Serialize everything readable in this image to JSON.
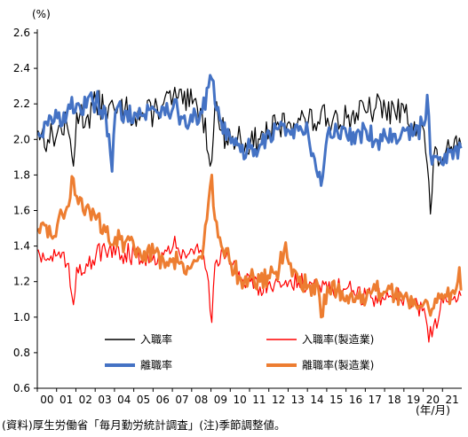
{
  "chart_data": {
    "type": "line",
    "y_unit_label": "(%)",
    "x_unit_label": "(年/月)",
    "note": "(資料)厚生労働省「毎月勤労統計調査」(注)季節調整値。",
    "ylim": [
      0.6,
      2.6
    ],
    "y_ticks": [
      "0.6",
      "0.8",
      "1.0",
      "1.2",
      "1.4",
      "1.6",
      "1.8",
      "2.0",
      "2.2",
      "2.4",
      "2.6"
    ],
    "x_range": [
      "2000-01",
      "2021-12"
    ],
    "x_ticks": [
      "00",
      "01",
      "02",
      "03",
      "04",
      "05",
      "06",
      "07",
      "08",
      "09",
      "10",
      "11",
      "12",
      "13",
      "14",
      "15",
      "16",
      "17",
      "18",
      "19",
      "20",
      "21"
    ],
    "grid": false,
    "legend_position": "bottom, inside plot, 2 columns",
    "series": [
      {
        "name": "入職率",
        "color": "#000000",
        "style": "thin",
        "anchors": [
          [
            0,
            2.05
          ],
          [
            6,
            2.0
          ],
          [
            12,
            2.04
          ],
          [
            18,
            2.08
          ],
          [
            22,
            1.85
          ],
          [
            24,
            2.15
          ],
          [
            30,
            2.12
          ],
          [
            36,
            2.2
          ],
          [
            42,
            2.18
          ],
          [
            48,
            2.15
          ],
          [
            54,
            2.17
          ],
          [
            60,
            2.14
          ],
          [
            66,
            2.13
          ],
          [
            72,
            2.16
          ],
          [
            78,
            2.2
          ],
          [
            84,
            2.24
          ],
          [
            90,
            2.2
          ],
          [
            96,
            2.2
          ],
          [
            102,
            2.15
          ],
          [
            108,
            1.88
          ],
          [
            110,
            2.2
          ],
          [
            114,
            2.05
          ],
          [
            120,
            2.0
          ],
          [
            126,
            2.0
          ],
          [
            132,
            1.97
          ],
          [
            138,
            2.0
          ],
          [
            144,
            2.05
          ],
          [
            150,
            2.07
          ],
          [
            156,
            2.1
          ],
          [
            162,
            2.12
          ],
          [
            168,
            2.1
          ],
          [
            174,
            2.1
          ],
          [
            180,
            2.12
          ],
          [
            186,
            2.14
          ],
          [
            192,
            2.12
          ],
          [
            198,
            2.15
          ],
          [
            204,
            2.15
          ],
          [
            210,
            2.18
          ],
          [
            216,
            2.17
          ],
          [
            222,
            2.15
          ],
          [
            228,
            2.15
          ],
          [
            234,
            2.1
          ],
          [
            240,
            2.05
          ],
          [
            244,
            1.58
          ],
          [
            246,
            1.9
          ],
          [
            252,
            1.9
          ],
          [
            258,
            1.93
          ],
          [
            263,
            1.97
          ]
        ]
      },
      {
        "name": "離職率",
        "color": "#4472C4",
        "style": "thick",
        "anchors": [
          [
            0,
            2.04
          ],
          [
            6,
            2.08
          ],
          [
            12,
            2.12
          ],
          [
            18,
            2.15
          ],
          [
            24,
            2.2
          ],
          [
            30,
            2.18
          ],
          [
            36,
            2.22
          ],
          [
            42,
            2.15
          ],
          [
            46,
            1.82
          ],
          [
            48,
            2.15
          ],
          [
            54,
            2.16
          ],
          [
            60,
            2.15
          ],
          [
            66,
            2.14
          ],
          [
            72,
            2.17
          ],
          [
            78,
            2.18
          ],
          [
            84,
            2.18
          ],
          [
            90,
            2.12
          ],
          [
            96,
            2.1
          ],
          [
            102,
            2.15
          ],
          [
            108,
            2.34
          ],
          [
            110,
            2.2
          ],
          [
            114,
            2.1
          ],
          [
            120,
            1.98
          ],
          [
            126,
            1.93
          ],
          [
            132,
            1.95
          ],
          [
            138,
            1.97
          ],
          [
            144,
            2.03
          ],
          [
            150,
            2.07
          ],
          [
            156,
            2.05
          ],
          [
            162,
            2.05
          ],
          [
            168,
            2.03
          ],
          [
            176,
            1.74
          ],
          [
            180,
            2.03
          ],
          [
            186,
            2.05
          ],
          [
            192,
            2.02
          ],
          [
            198,
            2.04
          ],
          [
            204,
            2.05
          ],
          [
            210,
            2.0
          ],
          [
            216,
            2.02
          ],
          [
            222,
            2.03
          ],
          [
            228,
            2.05
          ],
          [
            234,
            2.03
          ],
          [
            240,
            2.08
          ],
          [
            242,
            2.25
          ],
          [
            244,
            1.92
          ],
          [
            250,
            1.9
          ],
          [
            256,
            1.93
          ],
          [
            263,
            1.95
          ]
        ]
      },
      {
        "name": "入職率(製造業)",
        "color": "#FF0000",
        "style": "thin",
        "anchors": [
          [
            0,
            1.38
          ],
          [
            6,
            1.33
          ],
          [
            12,
            1.35
          ],
          [
            18,
            1.3
          ],
          [
            22,
            1.07
          ],
          [
            24,
            1.28
          ],
          [
            30,
            1.3
          ],
          [
            36,
            1.35
          ],
          [
            42,
            1.37
          ],
          [
            48,
            1.35
          ],
          [
            54,
            1.36
          ],
          [
            60,
            1.35
          ],
          [
            66,
            1.33
          ],
          [
            72,
            1.35
          ],
          [
            78,
            1.35
          ],
          [
            84,
            1.4
          ],
          [
            90,
            1.38
          ],
          [
            96,
            1.38
          ],
          [
            102,
            1.36
          ],
          [
            106,
            1.2
          ],
          [
            108,
            0.97
          ],
          [
            110,
            1.3
          ],
          [
            114,
            1.38
          ],
          [
            120,
            1.3
          ],
          [
            126,
            1.2
          ],
          [
            132,
            1.2
          ],
          [
            138,
            1.17
          ],
          [
            144,
            1.2
          ],
          [
            150,
            1.2
          ],
          [
            156,
            1.2
          ],
          [
            162,
            1.2
          ],
          [
            168,
            1.17
          ],
          [
            174,
            1.18
          ],
          [
            180,
            1.15
          ],
          [
            186,
            1.16
          ],
          [
            192,
            1.16
          ],
          [
            198,
            1.12
          ],
          [
            204,
            1.12
          ],
          [
            210,
            1.12
          ],
          [
            216,
            1.1
          ],
          [
            222,
            1.12
          ],
          [
            228,
            1.12
          ],
          [
            234,
            1.08
          ],
          [
            240,
            1.05
          ],
          [
            243,
            0.86
          ],
          [
            246,
            0.95
          ],
          [
            252,
            1.08
          ],
          [
            258,
            1.1
          ],
          [
            263,
            1.12
          ]
        ]
      },
      {
        "name": "離職率(製造業)",
        "color": "#ED7D31",
        "style": "thick",
        "anchors": [
          [
            0,
            1.5
          ],
          [
            6,
            1.45
          ],
          [
            12,
            1.52
          ],
          [
            18,
            1.62
          ],
          [
            22,
            1.78
          ],
          [
            24,
            1.68
          ],
          [
            30,
            1.62
          ],
          [
            36,
            1.55
          ],
          [
            42,
            1.48
          ],
          [
            48,
            1.45
          ],
          [
            54,
            1.42
          ],
          [
            60,
            1.38
          ],
          [
            66,
            1.37
          ],
          [
            72,
            1.36
          ],
          [
            78,
            1.32
          ],
          [
            84,
            1.33
          ],
          [
            90,
            1.3
          ],
          [
            96,
            1.3
          ],
          [
            102,
            1.33
          ],
          [
            108,
            1.8
          ],
          [
            110,
            1.55
          ],
          [
            114,
            1.4
          ],
          [
            120,
            1.3
          ],
          [
            126,
            1.22
          ],
          [
            132,
            1.22
          ],
          [
            138,
            1.2
          ],
          [
            144,
            1.22
          ],
          [
            150,
            1.28
          ],
          [
            154,
            1.42
          ],
          [
            156,
            1.3
          ],
          [
            162,
            1.2
          ],
          [
            168,
            1.18
          ],
          [
            174,
            1.18
          ],
          [
            176,
            1.0
          ],
          [
            180,
            1.17
          ],
          [
            186,
            1.15
          ],
          [
            192,
            1.12
          ],
          [
            198,
            1.12
          ],
          [
            204,
            1.1
          ],
          [
            210,
            1.15
          ],
          [
            216,
            1.14
          ],
          [
            222,
            1.12
          ],
          [
            228,
            1.12
          ],
          [
            234,
            1.1
          ],
          [
            240,
            1.08
          ],
          [
            246,
            1.05
          ],
          [
            252,
            1.1
          ],
          [
            258,
            1.15
          ],
          [
            262,
            1.28
          ],
          [
            263,
            1.15
          ]
        ]
      }
    ]
  }
}
